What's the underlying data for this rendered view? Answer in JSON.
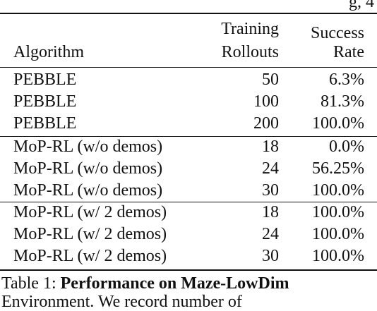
{
  "top_fragment": "g, 4",
  "table": {
    "headers": {
      "algorithm": "Algorithm",
      "rollouts_line1": "Training",
      "rollouts_line2": "Rollouts",
      "success_line1": "Success",
      "success_line2": "Rate"
    },
    "groups": [
      {
        "rows": [
          {
            "algorithm": "PEBBLE",
            "rollouts": "50",
            "success": "6.3%"
          },
          {
            "algorithm": "PEBBLE",
            "rollouts": "100",
            "success": "81.3%"
          },
          {
            "algorithm": "PEBBLE",
            "rollouts": "200",
            "success": "100.0%"
          }
        ]
      },
      {
        "rows": [
          {
            "algorithm": "MoP-RL (w/o demos)",
            "rollouts": "18",
            "success": "0.0%"
          },
          {
            "algorithm": "MoP-RL (w/o demos)",
            "rollouts": "24",
            "success": "56.25%"
          },
          {
            "algorithm": "MoP-RL (w/o demos)",
            "rollouts": "30",
            "success": "100.0%"
          }
        ]
      },
      {
        "rows": [
          {
            "algorithm": "MoP-RL (w/ 2 demos)",
            "rollouts": "18",
            "success": "100.0%"
          },
          {
            "algorithm": "MoP-RL (w/ 2 demos)",
            "rollouts": "24",
            "success": "100.0%"
          },
          {
            "algorithm": "MoP-RL (w/ 2 demos)",
            "rollouts": "30",
            "success": "100.0%"
          }
        ]
      }
    ]
  },
  "caption": {
    "label": "Table 1:",
    "bold_title": "Performance on Maze-LowDim",
    "line2": "Environment. We record number of"
  }
}
